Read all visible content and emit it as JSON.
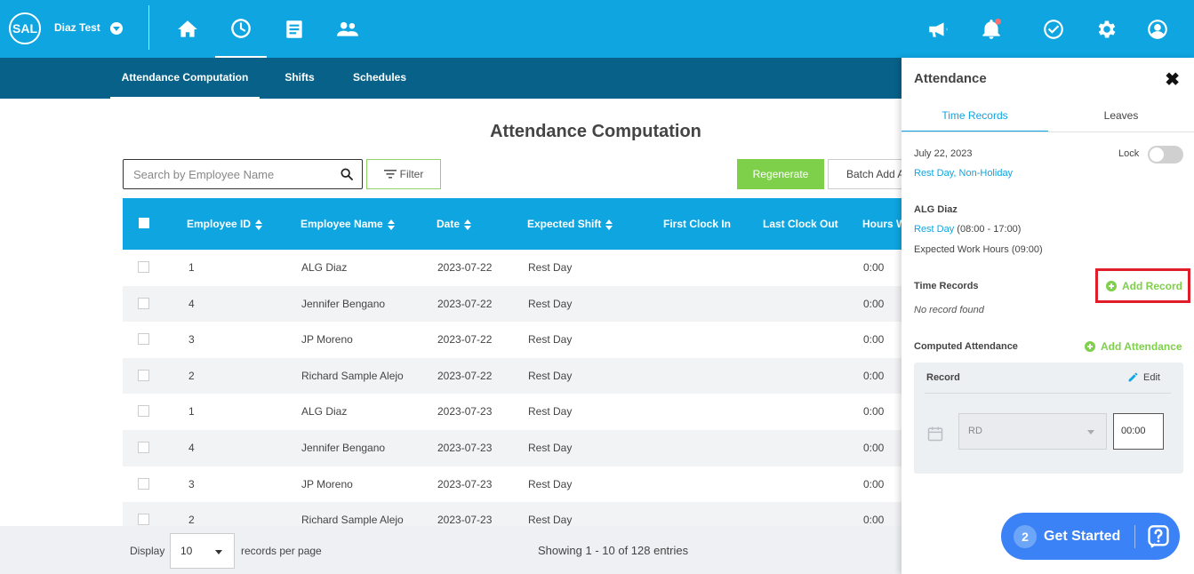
{
  "header": {
    "logo_text": "SAL",
    "company_name": "Diaz Test",
    "nav_icons": [
      "home-icon",
      "clock-icon",
      "document-icon",
      "people-icon"
    ],
    "right_icons": [
      "megaphone-icon",
      "bell-icon",
      "check-circle-icon",
      "gear-icon",
      "user-icon"
    ]
  },
  "subnav": {
    "tabs": [
      {
        "label": "Attendance Computation"
      },
      {
        "label": "Shifts"
      },
      {
        "label": "Schedules"
      }
    ]
  },
  "main": {
    "title": "Attendance Computation",
    "search_placeholder": "Search by Employee Name",
    "filter_label": "Filter",
    "regenerate_label": "Regenerate",
    "batch_label": "Batch Add Attendance"
  },
  "table": {
    "columns": [
      "Employee ID",
      "Employee Name",
      "Date",
      "Expected Shift",
      "First Clock In",
      "Last Clock Out",
      "Hours Worked"
    ],
    "rows": [
      {
        "id": "1",
        "name": "ALG Diaz",
        "date": "2023-07-22",
        "shift": "Rest Day",
        "hours": "0:00"
      },
      {
        "id": "4",
        "name": "Jennifer Bengano",
        "date": "2023-07-22",
        "shift": "Rest Day",
        "hours": "0:00"
      },
      {
        "id": "3",
        "name": "JP Moreno",
        "date": "2023-07-22",
        "shift": "Rest Day",
        "hours": "0:00"
      },
      {
        "id": "2",
        "name": "Richard Sample Alejo",
        "date": "2023-07-22",
        "shift": "Rest Day",
        "hours": "0:00"
      },
      {
        "id": "1",
        "name": "ALG Diaz",
        "date": "2023-07-23",
        "shift": "Rest Day",
        "hours": "0:00"
      },
      {
        "id": "4",
        "name": "Jennifer Bengano",
        "date": "2023-07-23",
        "shift": "Rest Day",
        "hours": "0:00"
      },
      {
        "id": "3",
        "name": "JP Moreno",
        "date": "2023-07-23",
        "shift": "Rest Day",
        "hours": "0:00"
      },
      {
        "id": "2",
        "name": "Richard Sample Alejo",
        "date": "2023-07-23",
        "shift": "Rest Day",
        "hours": "0:00"
      }
    ]
  },
  "footer": {
    "display_label": "Display",
    "per_page_value": "10",
    "per_page_label": "records per page",
    "showing": "Showing 1 - 10 of 128 entries"
  },
  "panel": {
    "title": "Attendance",
    "tabs": [
      "Time Records",
      "Leaves"
    ],
    "date": "July 22, 2023",
    "day_type": "Rest Day, Non-Holiday",
    "lock_label": "Lock",
    "employee": "ALG Diaz",
    "shift_name": "Rest Day",
    "shift_time": " (08:00 - 17:00)",
    "expected_hours": "Expected Work Hours (09:00)",
    "time_records_label": "Time Records",
    "add_record_label": "Add Record",
    "no_record": "No record found",
    "computed_label": "Computed Attendance",
    "add_attendance_label": "Add Attendance",
    "record_label": "Record",
    "edit_label": "Edit",
    "code_value": "RD",
    "time_value": "00:00"
  },
  "get_started": {
    "count": "2",
    "label": "Get Started"
  },
  "colors": {
    "primary": "#0ea5e0",
    "subnav": "#076189",
    "accent_green": "#7ed04b",
    "highlight_red": "#e11d2a",
    "cta_blue": "#3b82f6"
  }
}
